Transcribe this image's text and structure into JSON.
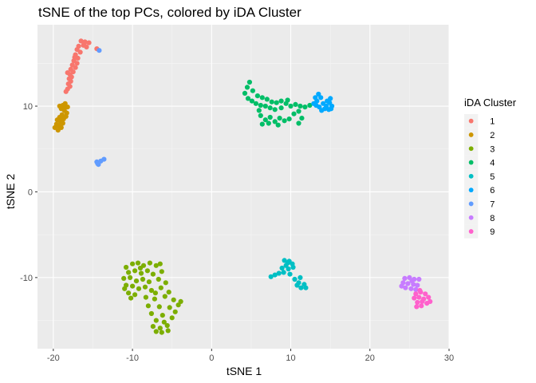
{
  "chart_data": {
    "type": "scatter",
    "title": "tSNE of the top PCs, colored by iDA Cluster",
    "xlabel": "tSNE 1",
    "ylabel": "tSNE 2",
    "xlim": [
      -22,
      30
    ],
    "ylim": [
      -18.3,
      19.5
    ],
    "x_ticks": [
      -20,
      -10,
      0,
      10,
      20,
      30
    ],
    "y_ticks": [
      -10,
      0,
      10
    ],
    "grid": true,
    "legend": {
      "title": "iDA Cluster",
      "position": "right",
      "entries": [
        "1",
        "2",
        "3",
        "4",
        "5",
        "6",
        "7",
        "8",
        "9"
      ]
    },
    "series": [
      {
        "name": "1",
        "color": "#F8766D",
        "points": [
          [
            -16.5,
            17.6
          ],
          [
            -16.0,
            17.5
          ],
          [
            -15.5,
            17.4
          ],
          [
            -16.8,
            17.0
          ],
          [
            -16.2,
            17.1
          ],
          [
            -17.0,
            16.6
          ],
          [
            -15.8,
            16.9
          ],
          [
            -16.6,
            16.3
          ],
          [
            -17.2,
            16.0
          ],
          [
            -16.9,
            15.6
          ],
          [
            -17.4,
            15.3
          ],
          [
            -17.0,
            15.0
          ],
          [
            -17.6,
            14.8
          ],
          [
            -17.2,
            14.5
          ],
          [
            -17.8,
            14.3
          ],
          [
            -17.5,
            14.0
          ],
          [
            -17.9,
            13.7
          ],
          [
            -17.7,
            13.4
          ],
          [
            -18.0,
            13.2
          ],
          [
            -17.8,
            12.9
          ],
          [
            -18.1,
            12.6
          ],
          [
            -17.9,
            12.3
          ],
          [
            -18.2,
            12.0
          ],
          [
            -18.4,
            11.7
          ],
          [
            -14.5,
            16.7
          ],
          [
            -16.1,
            17.3
          ],
          [
            -17.3,
            15.7
          ],
          [
            -18.2,
            13.9
          ]
        ]
      },
      {
        "name": "2",
        "color": "#CD9600",
        "points": [
          [
            -18.5,
            10.3
          ],
          [
            -18.8,
            10.1
          ],
          [
            -18.2,
            9.9
          ],
          [
            -19.0,
            9.7
          ],
          [
            -18.6,
            9.5
          ],
          [
            -18.3,
            9.2
          ],
          [
            -18.9,
            9.0
          ],
          [
            -19.2,
            8.7
          ],
          [
            -18.7,
            8.5
          ],
          [
            -19.5,
            8.4
          ],
          [
            -19.1,
            8.2
          ],
          [
            -18.8,
            8.0
          ],
          [
            -19.6,
            7.9
          ],
          [
            -19.3,
            7.7
          ],
          [
            -19.0,
            7.5
          ],
          [
            -19.4,
            7.2
          ],
          [
            -19.8,
            7.5
          ],
          [
            -18.6,
            9.8
          ],
          [
            -18.4,
            8.8
          ],
          [
            -19.2,
            10.0
          ]
        ]
      },
      {
        "name": "3",
        "color": "#7CAE00",
        "points": [
          [
            -10.8,
            -8.8
          ],
          [
            -10.0,
            -8.4
          ],
          [
            -9.3,
            -8.3
          ],
          [
            -8.6,
            -8.6
          ],
          [
            -7.8,
            -8.3
          ],
          [
            -7.0,
            -8.6
          ],
          [
            -6.5,
            -8.4
          ],
          [
            -10.5,
            -9.4
          ],
          [
            -9.7,
            -9.2
          ],
          [
            -8.9,
            -9.5
          ],
          [
            -8.1,
            -9.2
          ],
          [
            -7.4,
            -9.6
          ],
          [
            -6.3,
            -9.3
          ],
          [
            -11.1,
            -10.1
          ],
          [
            -10.3,
            -10.0
          ],
          [
            -9.5,
            -10.4
          ],
          [
            -8.7,
            -10.2
          ],
          [
            -7.9,
            -10.5
          ],
          [
            -6.7,
            -10.2
          ],
          [
            -5.8,
            -10.6
          ],
          [
            -10.8,
            -10.9
          ],
          [
            -10.0,
            -11.0
          ],
          [
            -9.2,
            -11.3
          ],
          [
            -8.4,
            -11.1
          ],
          [
            -7.6,
            -11.5
          ],
          [
            -6.4,
            -11.2
          ],
          [
            -5.4,
            -11.7
          ],
          [
            -10.5,
            -11.8
          ],
          [
            -9.7,
            -12.0
          ],
          [
            -8.3,
            -12.3
          ],
          [
            -7.2,
            -12.5
          ],
          [
            -5.9,
            -12.2
          ],
          [
            -4.8,
            -12.6
          ],
          [
            -4.2,
            -13.2
          ],
          [
            -3.9,
            -12.8
          ],
          [
            -8.0,
            -13.3
          ],
          [
            -6.6,
            -13.4
          ],
          [
            -5.3,
            -13.5
          ],
          [
            -4.6,
            -14.0
          ],
          [
            -7.6,
            -14.2
          ],
          [
            -6.2,
            -14.4
          ],
          [
            -5.0,
            -14.7
          ],
          [
            -7.0,
            -15.0
          ],
          [
            -6.0,
            -15.2
          ],
          [
            -7.4,
            -15.7
          ],
          [
            -6.5,
            -15.9
          ],
          [
            -5.6,
            -15.6
          ],
          [
            -7.0,
            -16.3
          ],
          [
            -6.3,
            -16.4
          ],
          [
            -5.5,
            -16.2
          ],
          [
            -9.0,
            -8.9
          ],
          [
            -11.0,
            -11.3
          ],
          [
            -10.2,
            -12.4
          ],
          [
            -7.1,
            -11.8
          ]
        ]
      },
      {
        "name": "4",
        "color": "#00BE67",
        "points": [
          [
            4.8,
            12.8
          ],
          [
            4.5,
            12.2
          ],
          [
            5.2,
            11.8
          ],
          [
            4.2,
            11.5
          ],
          [
            5.8,
            11.2
          ],
          [
            4.6,
            10.9
          ],
          [
            6.4,
            11.0
          ],
          [
            5.1,
            10.6
          ],
          [
            7.0,
            10.8
          ],
          [
            5.6,
            10.3
          ],
          [
            7.6,
            10.5
          ],
          [
            6.2,
            10.1
          ],
          [
            8.2,
            10.4
          ],
          [
            6.8,
            10.0
          ],
          [
            8.8,
            10.6
          ],
          [
            9.4,
            10.3
          ],
          [
            7.4,
            9.8
          ],
          [
            8.0,
            9.6
          ],
          [
            10.0,
            10.0
          ],
          [
            10.6,
            10.2
          ],
          [
            11.2,
            10.0
          ],
          [
            11.8,
            9.9
          ],
          [
            12.4,
            10.1
          ],
          [
            6.2,
            8.9
          ],
          [
            6.8,
            8.4
          ],
          [
            7.4,
            8.7
          ],
          [
            8.0,
            8.2
          ],
          [
            8.6,
            8.6
          ],
          [
            9.2,
            8.3
          ],
          [
            9.8,
            8.5
          ],
          [
            10.4,
            9.1
          ],
          [
            11.0,
            9.4
          ],
          [
            11.4,
            8.6
          ],
          [
            11.0,
            8.0
          ],
          [
            6.4,
            7.9
          ],
          [
            7.2,
            8.0
          ],
          [
            8.8,
            9.8
          ],
          [
            9.6,
            10.7
          ],
          [
            6.0,
            9.5
          ],
          [
            8.4,
            7.8
          ]
        ]
      },
      {
        "name": "5",
        "color": "#00BFC4",
        "points": [
          [
            9.2,
            -8.0
          ],
          [
            9.8,
            -8.1
          ],
          [
            10.2,
            -8.4
          ],
          [
            9.4,
            -8.6
          ],
          [
            8.9,
            -8.9
          ],
          [
            9.7,
            -9.0
          ],
          [
            10.3,
            -8.8
          ],
          [
            9.1,
            -9.4
          ],
          [
            8.5,
            -9.5
          ],
          [
            9.9,
            -9.6
          ],
          [
            8.0,
            -9.7
          ],
          [
            7.5,
            -9.9
          ],
          [
            10.5,
            -10.2
          ],
          [
            11.2,
            -10.0
          ],
          [
            11.0,
            -10.6
          ],
          [
            11.7,
            -10.8
          ],
          [
            11.3,
            -11.2
          ],
          [
            11.9,
            -11.2
          ],
          [
            10.8,
            -10.9
          ],
          [
            9.6,
            -8.3
          ]
        ]
      },
      {
        "name": "6",
        "color": "#00A9FF",
        "points": [
          [
            13.1,
            11.0
          ],
          [
            13.5,
            11.4
          ],
          [
            13.8,
            11.0
          ],
          [
            13.3,
            10.6
          ],
          [
            14.1,
            10.3
          ],
          [
            14.5,
            10.0
          ],
          [
            14.9,
            10.4
          ],
          [
            15.2,
            10.0
          ],
          [
            14.3,
            9.7
          ],
          [
            14.8,
            9.6
          ],
          [
            15.1,
            9.7
          ],
          [
            13.6,
            9.9
          ],
          [
            13.9,
            9.5
          ],
          [
            12.9,
            10.3
          ],
          [
            14.6,
            10.6
          ],
          [
            15.0,
            10.9
          ],
          [
            13.2,
            10.1
          ]
        ]
      },
      {
        "name": "7",
        "color": "#619CFF",
        "points": [
          [
            -14.3,
            3.2
          ],
          [
            -14.5,
            3.5
          ],
          [
            -14.0,
            3.6
          ],
          [
            -13.6,
            3.8
          ],
          [
            -14.4,
            3.3
          ],
          [
            -14.2,
            16.5
          ]
        ]
      },
      {
        "name": "8",
        "color": "#C77CFF",
        "points": [
          [
            24.4,
            -10.1
          ],
          [
            25.0,
            -10.0
          ],
          [
            25.6,
            -10.2
          ],
          [
            26.2,
            -10.2
          ],
          [
            24.2,
            -10.6
          ],
          [
            24.8,
            -10.7
          ],
          [
            25.5,
            -10.8
          ],
          [
            26.0,
            -10.9
          ],
          [
            24.5,
            -11.2
          ],
          [
            25.2,
            -11.3
          ],
          [
            25.8,
            -11.4
          ],
          [
            24.0,
            -11.0
          ],
          [
            25.3,
            -10.4
          ]
        ]
      },
      {
        "name": "9",
        "color": "#FF61CC",
        "points": [
          [
            25.8,
            -11.9
          ],
          [
            26.4,
            -11.7
          ],
          [
            27.0,
            -11.9
          ],
          [
            25.6,
            -12.4
          ],
          [
            26.2,
            -12.3
          ],
          [
            26.8,
            -12.5
          ],
          [
            27.4,
            -12.3
          ],
          [
            26.0,
            -12.9
          ],
          [
            26.6,
            -12.8
          ],
          [
            27.2,
            -13.0
          ],
          [
            25.9,
            -13.4
          ],
          [
            26.5,
            -13.3
          ],
          [
            27.6,
            -12.8
          ],
          [
            26.3,
            -11.5
          ]
        ]
      }
    ]
  }
}
